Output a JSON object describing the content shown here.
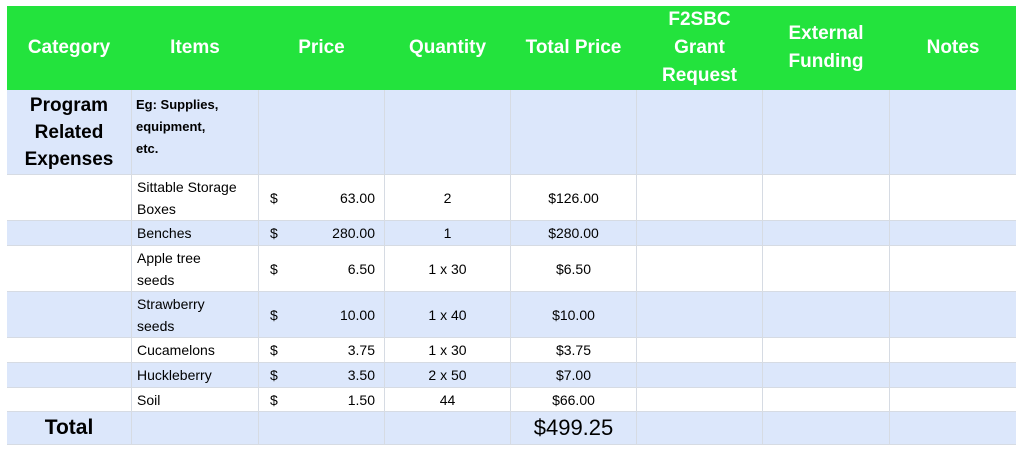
{
  "header": [
    "Category",
    "Items",
    "Price",
    "Quantity",
    "Total Price",
    "F2SBC\nGrant\nRequest",
    "External\nFunding",
    "Notes"
  ],
  "program": {
    "category": "Program\nRelated\nExpenses",
    "items_hint": "Eg: Supplies,\nequipment,\netc."
  },
  "currency_symbol": "$",
  "rows": [
    {
      "item": "Sittable Storage\nBoxes",
      "price": "63.00",
      "quantity": "2",
      "total": "$126.00"
    },
    {
      "item": "Benches",
      "price": "280.00",
      "quantity": "1",
      "total": "$280.00"
    },
    {
      "item": "Apple tree\nseeds",
      "price": "6.50",
      "quantity": "1 x 30",
      "total": "$6.50"
    },
    {
      "item": "Strawberry\nseeds",
      "price": "10.00",
      "quantity": "1 x 40",
      "total": "$10.00"
    },
    {
      "item": "Cucamelons",
      "price": "3.75",
      "quantity": "1 x 30",
      "total": "$3.75"
    },
    {
      "item": "Huckleberry",
      "price": "3.50",
      "quantity": "2 x 50",
      "total": "$7.00"
    },
    {
      "item": "Soil",
      "price": "1.50",
      "quantity": "44",
      "total": "$66.00"
    }
  ],
  "total": {
    "label": "Total",
    "value": "$499.25"
  },
  "colors": {
    "header_green": "#23e33d",
    "band_blue": "#dce7fb",
    "header_text": "#ffffff"
  }
}
